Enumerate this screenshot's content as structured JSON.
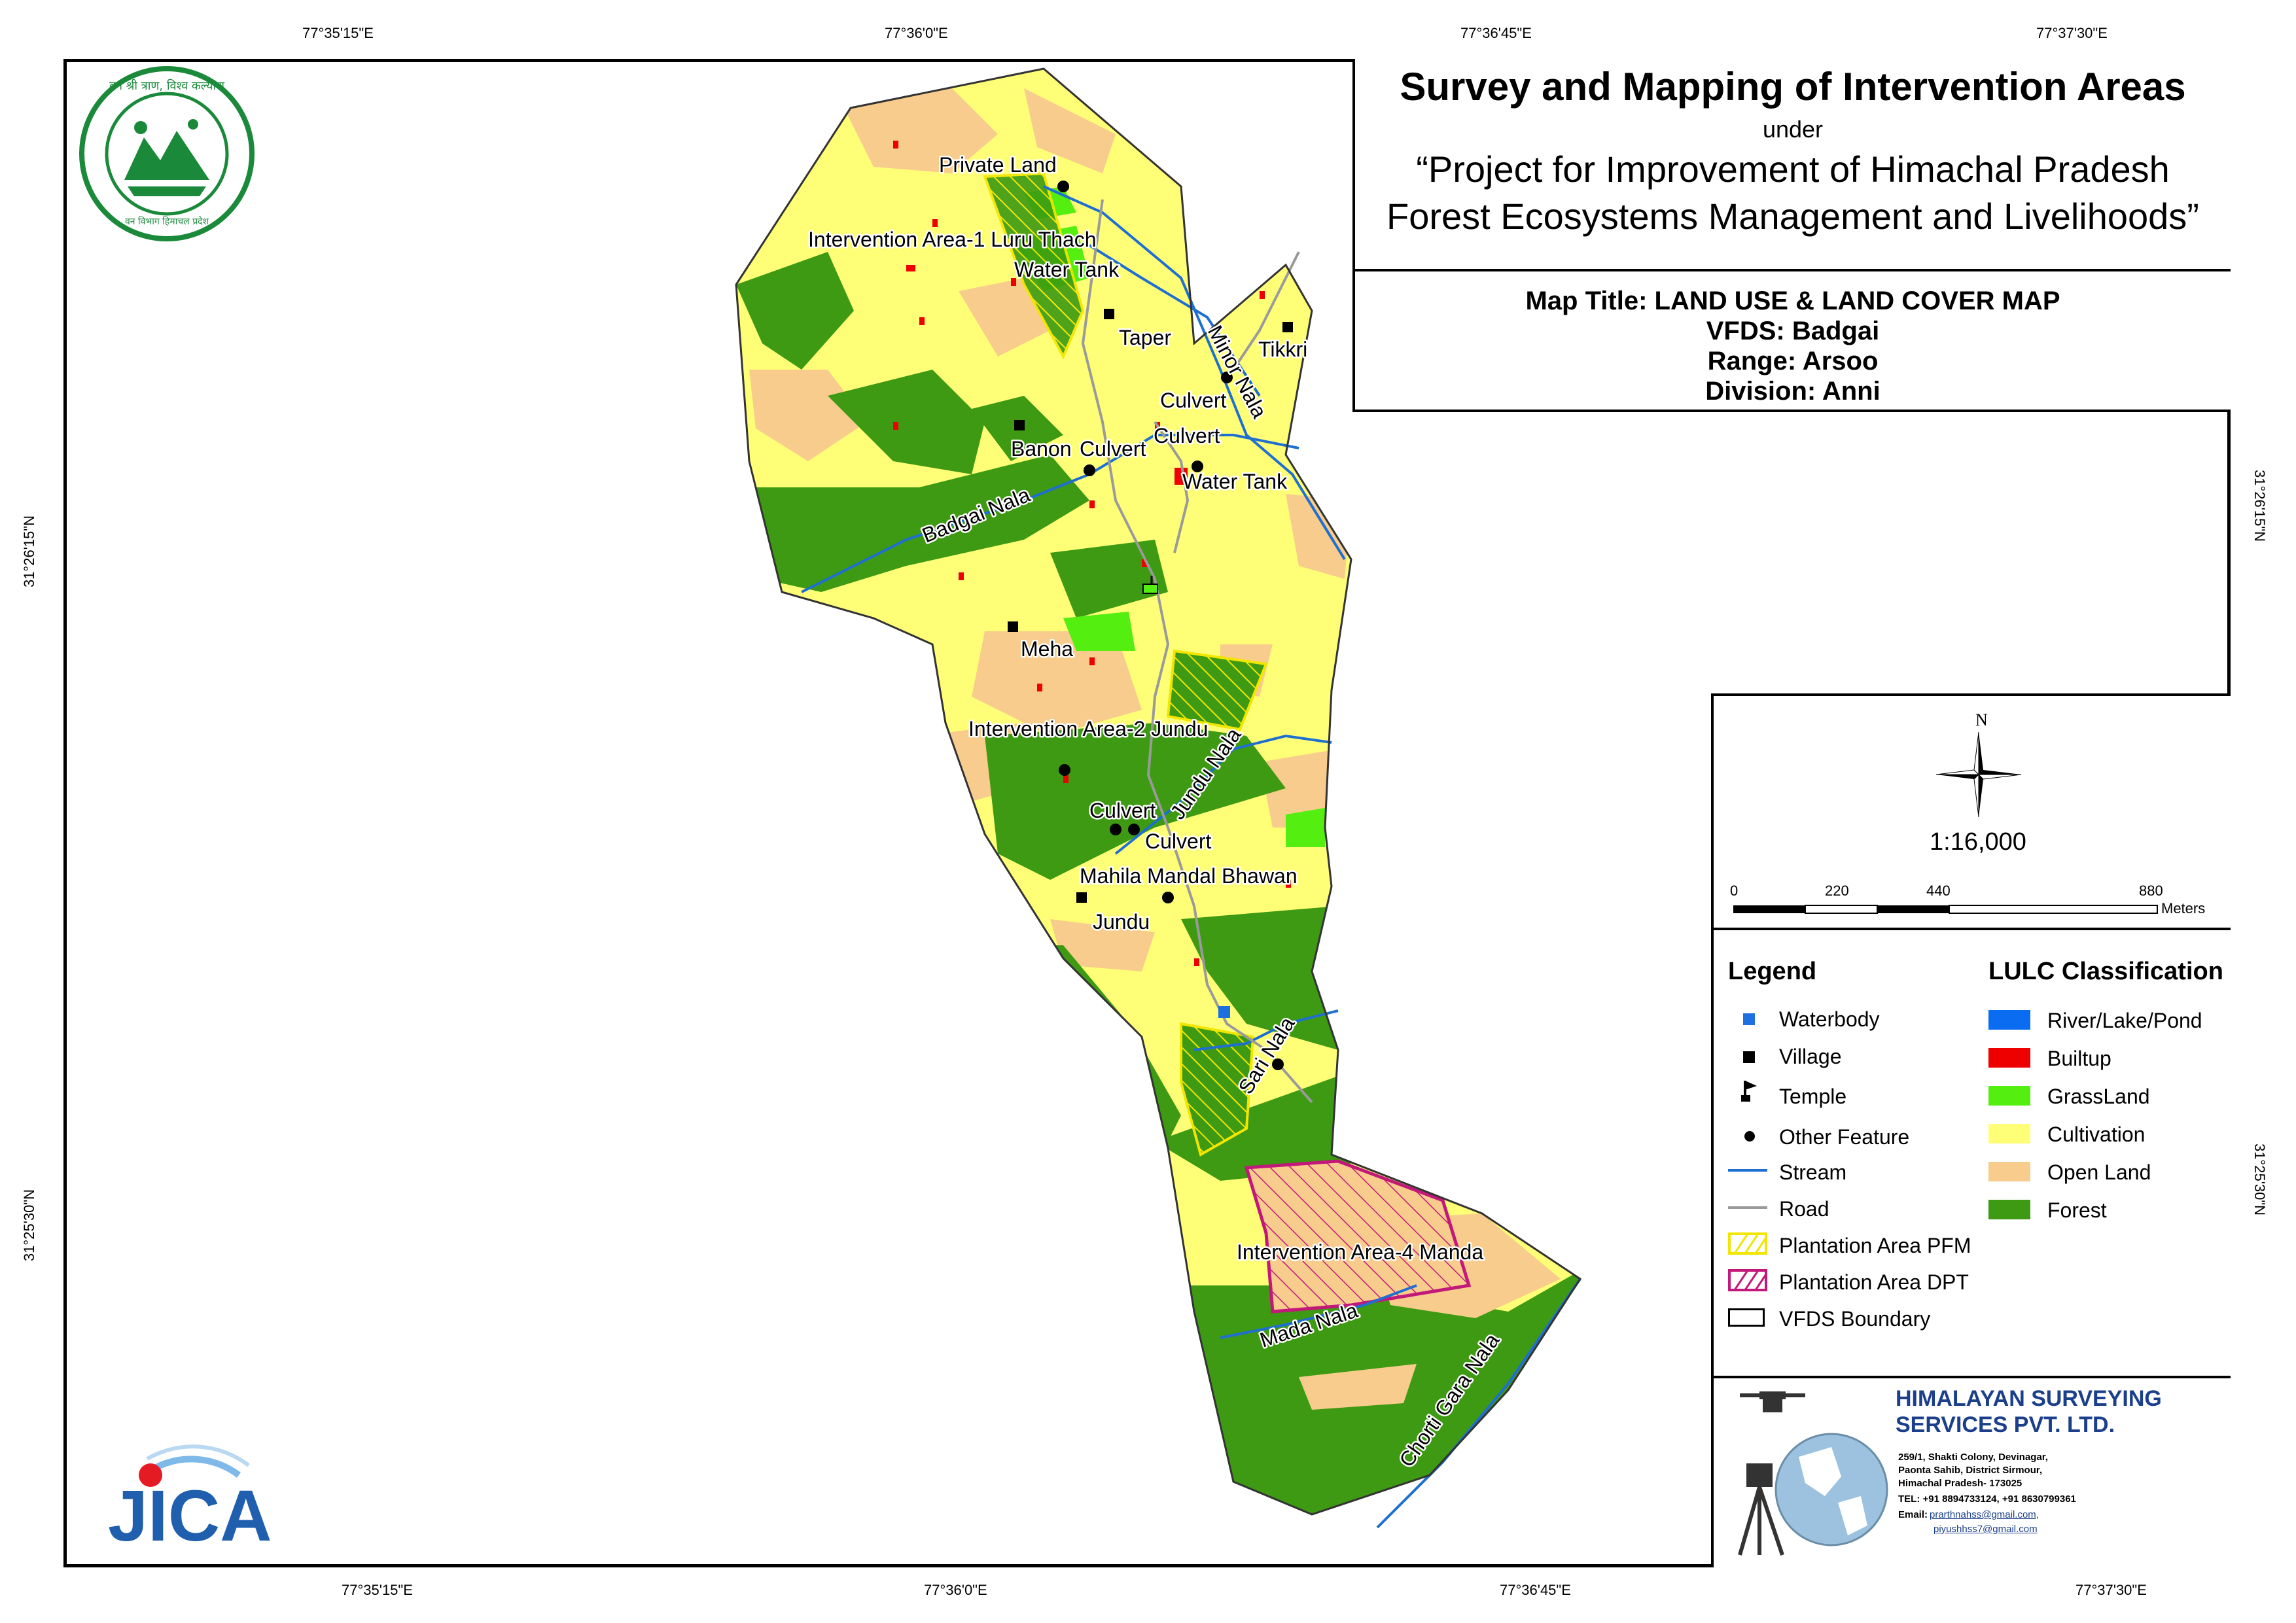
{
  "coordinates": {
    "top": [
      "77°35'15\"E",
      "77°36'0\"E",
      "77°36'45\"E",
      "77°37'30\"E"
    ],
    "bottom": [
      "77°35'15\"E",
      "77°36'0\"E",
      "77°36'45\"E",
      "77°37'30\"E"
    ],
    "left": [
      "31°26'15\"N",
      "31°25'30\"N"
    ],
    "right": [
      "31°26'15\"N",
      "31°25'30\"N"
    ]
  },
  "title": {
    "line1": "Survey and Mapping of Intervention Areas",
    "line2": "under",
    "line3": "“Project for Improvement of Himachal Pradesh",
    "line4": "Forest Ecosystems Management and Livelihoods”"
  },
  "info": {
    "map_title": "Map Title: LAND USE & LAND COVER MAP",
    "vfds": "VFDS: Badgai",
    "range": "Range: Arsoo",
    "division": "Division: Anni"
  },
  "north_arrow": "N",
  "scale": {
    "ratio": "1:16,000",
    "ticks": [
      "0",
      "220",
      "440",
      "880"
    ],
    "unit": "Meters"
  },
  "legend": {
    "heading": "Legend",
    "items": [
      {
        "label": "Waterbody",
        "icon": "waterbody-square-icon",
        "color": "#1e6fe0"
      },
      {
        "label": "Village",
        "icon": "village-square-icon",
        "color": "#000000"
      },
      {
        "label": "Temple",
        "icon": "temple-flag-icon",
        "color": "#000000"
      },
      {
        "label": "Other Feature",
        "icon": "other-feature-dot-icon",
        "color": "#000000"
      },
      {
        "label": "Stream",
        "icon": "stream-line-icon",
        "color": "#1f6fd1"
      },
      {
        "label": "Road",
        "icon": "road-line-icon",
        "color": "#9a9a9a"
      },
      {
        "label": "Plantation Area PFM",
        "icon": "pfm-hatch-icon",
        "color": "#f2e600"
      },
      {
        "label": "Plantation Area DPT",
        "icon": "dpt-hatch-icon",
        "color": "#c2187a"
      },
      {
        "label": "VFDS Boundary",
        "icon": "boundary-box-icon",
        "color": "#000000"
      }
    ]
  },
  "lulc": {
    "heading": "LULC Classification",
    "items": [
      {
        "label": "River/Lake/Pond",
        "color": "#0a6cf0"
      },
      {
        "label": "Builtup",
        "color": "#ee0000"
      },
      {
        "label": "GrassLand",
        "color": "#55ee11"
      },
      {
        "label": "Cultivation",
        "color": "#ffff77"
      },
      {
        "label": "Open Land",
        "color": "#f8cc8c"
      },
      {
        "label": "Forest",
        "color": "#3d9a12"
      }
    ]
  },
  "company": {
    "name1": "HIMALAYAN SURVEYING",
    "name2": "SERVICES PVT. LTD.",
    "address": [
      "259/1, Shakti Colony, Devinagar,",
      "Paonta Sahib, District Sirmour,",
      "Himachal Pradesh- 173025"
    ],
    "tel": "TEL: +91 8894733124, +91 8630799361",
    "email_label": "Email:",
    "email1": "prarthnahss@gmail.com,",
    "email2": "piyushhss7@gmail.com"
  },
  "logos": {
    "forest_dept": "वन विभाग हिमाचल प्रदेश",
    "forest_motto": "वन श्री त्राण, विश्व कल्याण",
    "jica": "JICA"
  },
  "map_labels": {
    "private_land": "Private Land",
    "ia1": "Intervention Area-1 Luru Thach",
    "water_tank_1": "Water Tank",
    "taper": "Taper",
    "tikkri": "Tikkri",
    "minor_nala": "Minor Nala",
    "culvert_1": "Culvert",
    "culvert_2": "Culvert",
    "banon": "Banon",
    "culvert_3": "Culvert",
    "water_tank_2": "Water Tank",
    "badgai_nala": "Badgai Nala",
    "meha": "Meha",
    "ia2": "Intervention Area-2 Jundu",
    "jundu_nala": "Jundu Nala",
    "culvert_4": "Culvert",
    "culvert_5": "Culvert",
    "mahila": "Mahila Mandal Bhawan",
    "jundu": "Jundu",
    "sari_nala": "Sari Nala",
    "ia4": "Intervention Area-4 Manda",
    "mada_nala": "Mada Nala",
    "chorti_nala": "Chorti Gara Nala"
  }
}
